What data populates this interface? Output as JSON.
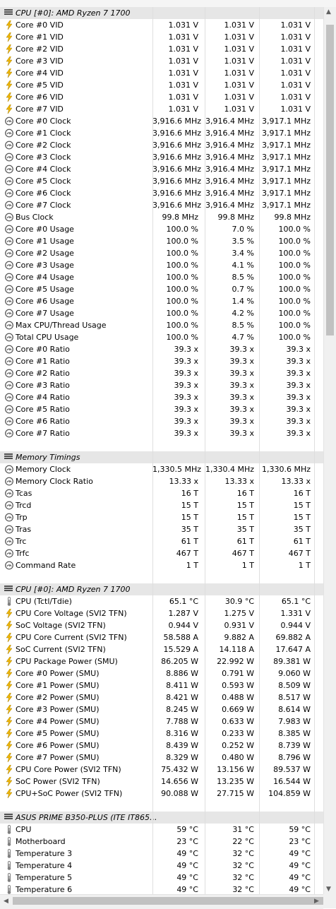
{
  "sections": [
    {
      "title": "CPU [#0]: AMD Ryzen 7 1700",
      "rows": [
        {
          "icon": "volt",
          "label": "Core #0 VID",
          "v": [
            "1.031 V",
            "1.031 V",
            "1.031 V"
          ]
        },
        {
          "icon": "volt",
          "label": "Core #1 VID",
          "v": [
            "1.031 V",
            "1.031 V",
            "1.031 V"
          ]
        },
        {
          "icon": "volt",
          "label": "Core #2 VID",
          "v": [
            "1.031 V",
            "1.031 V",
            "1.031 V"
          ]
        },
        {
          "icon": "volt",
          "label": "Core #3 VID",
          "v": [
            "1.031 V",
            "1.031 V",
            "1.031 V"
          ]
        },
        {
          "icon": "volt",
          "label": "Core #4 VID",
          "v": [
            "1.031 V",
            "1.031 V",
            "1.031 V"
          ]
        },
        {
          "icon": "volt",
          "label": "Core #5 VID",
          "v": [
            "1.031 V",
            "1.031 V",
            "1.031 V"
          ]
        },
        {
          "icon": "volt",
          "label": "Core #6 VID",
          "v": [
            "1.031 V",
            "1.031 V",
            "1.031 V"
          ]
        },
        {
          "icon": "volt",
          "label": "Core #7 VID",
          "v": [
            "1.031 V",
            "1.031 V",
            "1.031 V"
          ]
        },
        {
          "icon": "gauge",
          "label": "Core #0 Clock",
          "v": [
            "3,916.6 MHz",
            "3,916.4 MHz",
            "3,917.1 MHz"
          ]
        },
        {
          "icon": "gauge",
          "label": "Core #1 Clock",
          "v": [
            "3,916.6 MHz",
            "3,916.4 MHz",
            "3,917.1 MHz"
          ]
        },
        {
          "icon": "gauge",
          "label": "Core #2 Clock",
          "v": [
            "3,916.6 MHz",
            "3,916.4 MHz",
            "3,917.1 MHz"
          ]
        },
        {
          "icon": "gauge",
          "label": "Core #3 Clock",
          "v": [
            "3,916.6 MHz",
            "3,916.4 MHz",
            "3,917.1 MHz"
          ]
        },
        {
          "icon": "gauge",
          "label": "Core #4 Clock",
          "v": [
            "3,916.6 MHz",
            "3,916.4 MHz",
            "3,917.1 MHz"
          ]
        },
        {
          "icon": "gauge",
          "label": "Core #5 Clock",
          "v": [
            "3,916.6 MHz",
            "3,916.4 MHz",
            "3,917.1 MHz"
          ]
        },
        {
          "icon": "gauge",
          "label": "Core #6 Clock",
          "v": [
            "3,916.6 MHz",
            "3,916.4 MHz",
            "3,917.1 MHz"
          ]
        },
        {
          "icon": "gauge",
          "label": "Core #7 Clock",
          "v": [
            "3,916.6 MHz",
            "3,916.4 MHz",
            "3,917.1 MHz"
          ]
        },
        {
          "icon": "gauge",
          "label": "Bus Clock",
          "v": [
            "99.8 MHz",
            "99.8 MHz",
            "99.8 MHz"
          ]
        },
        {
          "icon": "gauge",
          "label": "Core #0 Usage",
          "v": [
            "100.0 %",
            "7.0 %",
            "100.0 %"
          ]
        },
        {
          "icon": "gauge",
          "label": "Core #1 Usage",
          "v": [
            "100.0 %",
            "3.5 %",
            "100.0 %"
          ]
        },
        {
          "icon": "gauge",
          "label": "Core #2 Usage",
          "v": [
            "100.0 %",
            "3.4 %",
            "100.0 %"
          ]
        },
        {
          "icon": "gauge",
          "label": "Core #3 Usage",
          "v": [
            "100.0 %",
            "4.1 %",
            "100.0 %"
          ]
        },
        {
          "icon": "gauge",
          "label": "Core #4 Usage",
          "v": [
            "100.0 %",
            "8.5 %",
            "100.0 %"
          ]
        },
        {
          "icon": "gauge",
          "label": "Core #5 Usage",
          "v": [
            "100.0 %",
            "0.7 %",
            "100.0 %"
          ]
        },
        {
          "icon": "gauge",
          "label": "Core #6 Usage",
          "v": [
            "100.0 %",
            "1.4 %",
            "100.0 %"
          ]
        },
        {
          "icon": "gauge",
          "label": "Core #7 Usage",
          "v": [
            "100.0 %",
            "4.2 %",
            "100.0 %"
          ]
        },
        {
          "icon": "gauge",
          "label": "Max CPU/Thread Usage",
          "v": [
            "100.0 %",
            "8.5 %",
            "100.0 %"
          ]
        },
        {
          "icon": "gauge",
          "label": "Total CPU Usage",
          "v": [
            "100.0 %",
            "4.7 %",
            "100.0 %"
          ]
        },
        {
          "icon": "gauge",
          "label": "Core #0 Ratio",
          "v": [
            "39.3 x",
            "39.3 x",
            "39.3 x"
          ]
        },
        {
          "icon": "gauge",
          "label": "Core #1 Ratio",
          "v": [
            "39.3 x",
            "39.3 x",
            "39.3 x"
          ]
        },
        {
          "icon": "gauge",
          "label": "Core #2 Ratio",
          "v": [
            "39.3 x",
            "39.3 x",
            "39.3 x"
          ]
        },
        {
          "icon": "gauge",
          "label": "Core #3 Ratio",
          "v": [
            "39.3 x",
            "39.3 x",
            "39.3 x"
          ]
        },
        {
          "icon": "gauge",
          "label": "Core #4 Ratio",
          "v": [
            "39.3 x",
            "39.3 x",
            "39.3 x"
          ]
        },
        {
          "icon": "gauge",
          "label": "Core #5 Ratio",
          "v": [
            "39.3 x",
            "39.3 x",
            "39.3 x"
          ]
        },
        {
          "icon": "gauge",
          "label": "Core #6 Ratio",
          "v": [
            "39.3 x",
            "39.3 x",
            "39.3 x"
          ]
        },
        {
          "icon": "gauge",
          "label": "Core #7 Ratio",
          "v": [
            "39.3 x",
            "39.3 x",
            "39.3 x"
          ]
        }
      ]
    },
    {
      "title": "Memory Timings",
      "rows": [
        {
          "icon": "gauge",
          "label": "Memory Clock",
          "v": [
            "1,330.5 MHz",
            "1,330.4 MHz",
            "1,330.6 MHz"
          ]
        },
        {
          "icon": "gauge",
          "label": "Memory Clock Ratio",
          "v": [
            "13.33 x",
            "13.33 x",
            "13.33 x"
          ]
        },
        {
          "icon": "gauge",
          "label": "Tcas",
          "v": [
            "16 T",
            "16 T",
            "16 T"
          ]
        },
        {
          "icon": "gauge",
          "label": "Trcd",
          "v": [
            "15 T",
            "15 T",
            "15 T"
          ]
        },
        {
          "icon": "gauge",
          "label": "Trp",
          "v": [
            "15 T",
            "15 T",
            "15 T"
          ]
        },
        {
          "icon": "gauge",
          "label": "Tras",
          "v": [
            "35 T",
            "35 T",
            "35 T"
          ]
        },
        {
          "icon": "gauge",
          "label": "Trc",
          "v": [
            "61 T",
            "61 T",
            "61 T"
          ]
        },
        {
          "icon": "gauge",
          "label": "Trfc",
          "v": [
            "467 T",
            "467 T",
            "467 T"
          ]
        },
        {
          "icon": "gauge",
          "label": "Command Rate",
          "v": [
            "1 T",
            "1 T",
            "1 T"
          ]
        }
      ]
    },
    {
      "title": "CPU [#0]: AMD Ryzen 7 1700",
      "rows": [
        {
          "icon": "temp",
          "label": "CPU (Tctl/Tdie)",
          "v": [
            "65.1 °C",
            "30.9 °C",
            "65.1 °C"
          ]
        },
        {
          "icon": "volt",
          "label": "CPU Core Voltage (SVI2 TFN)",
          "v": [
            "1.287 V",
            "1.275 V",
            "1.331 V"
          ]
        },
        {
          "icon": "volt",
          "label": "SoC Voltage (SVI2 TFN)",
          "v": [
            "0.944 V",
            "0.931 V",
            "0.944 V"
          ]
        },
        {
          "icon": "volt",
          "label": "CPU Core Current (SVI2 TFN)",
          "v": [
            "58.588 A",
            "9.882 A",
            "69.882 A"
          ]
        },
        {
          "icon": "volt",
          "label": "SoC Current (SVI2 TFN)",
          "v": [
            "15.529 A",
            "14.118 A",
            "17.647 A"
          ]
        },
        {
          "icon": "volt",
          "label": "CPU Package Power (SMU)",
          "v": [
            "86.205 W",
            "22.992 W",
            "89.381 W"
          ]
        },
        {
          "icon": "volt",
          "label": "Core #0 Power (SMU)",
          "v": [
            "8.886 W",
            "0.791 W",
            "9.060 W"
          ]
        },
        {
          "icon": "volt",
          "label": "Core #1 Power (SMU)",
          "v": [
            "8.411 W",
            "0.593 W",
            "8.509 W"
          ]
        },
        {
          "icon": "volt",
          "label": "Core #2 Power (SMU)",
          "v": [
            "8.421 W",
            "0.488 W",
            "8.517 W"
          ]
        },
        {
          "icon": "volt",
          "label": "Core #3 Power (SMU)",
          "v": [
            "8.245 W",
            "0.669 W",
            "8.614 W"
          ]
        },
        {
          "icon": "volt",
          "label": "Core #4 Power (SMU)",
          "v": [
            "7.788 W",
            "0.633 W",
            "7.983 W"
          ]
        },
        {
          "icon": "volt",
          "label": "Core #5 Power (SMU)",
          "v": [
            "8.316 W",
            "0.233 W",
            "8.385 W"
          ]
        },
        {
          "icon": "volt",
          "label": "Core #6 Power (SMU)",
          "v": [
            "8.439 W",
            "0.252 W",
            "8.739 W"
          ]
        },
        {
          "icon": "volt",
          "label": "Core #7 Power (SMU)",
          "v": [
            "8.329 W",
            "0.480 W",
            "8.796 W"
          ]
        },
        {
          "icon": "volt",
          "label": "CPU Core Power (SVI2 TFN)",
          "v": [
            "75.432 W",
            "13.156 W",
            "89.537 W"
          ]
        },
        {
          "icon": "volt",
          "label": "SoC Power (SVI2 TFN)",
          "v": [
            "14.656 W",
            "13.235 W",
            "16.544 W"
          ]
        },
        {
          "icon": "volt",
          "label": "CPU+SoC Power (SVI2 TFN)",
          "v": [
            "90.088 W",
            "27.715 W",
            "104.859 W"
          ]
        }
      ]
    },
    {
      "title": "ASUS PRIME B350-PLUS (ITE IT865...",
      "rows": [
        {
          "icon": "temp",
          "label": "CPU",
          "v": [
            "59 °C",
            "31 °C",
            "59 °C"
          ]
        },
        {
          "icon": "temp",
          "label": "Motherboard",
          "v": [
            "23 °C",
            "22 °C",
            "23 °C"
          ]
        },
        {
          "icon": "temp",
          "label": "Temperature 3",
          "v": [
            "49 °C",
            "32 °C",
            "49 °C"
          ]
        },
        {
          "icon": "temp",
          "label": "Temperature 4",
          "v": [
            "49 °C",
            "32 °C",
            "49 °C"
          ]
        },
        {
          "icon": "temp",
          "label": "Temperature 5",
          "v": [
            "49 °C",
            "32 °C",
            "49 °C"
          ]
        },
        {
          "icon": "temp",
          "label": "Temperature 6",
          "v": [
            "49 °C",
            "32 °C",
            "49 °C"
          ]
        }
      ]
    }
  ],
  "icon_colors": {
    "volt": "#f2b800",
    "gauge": "#505050",
    "temp": "#808080"
  }
}
